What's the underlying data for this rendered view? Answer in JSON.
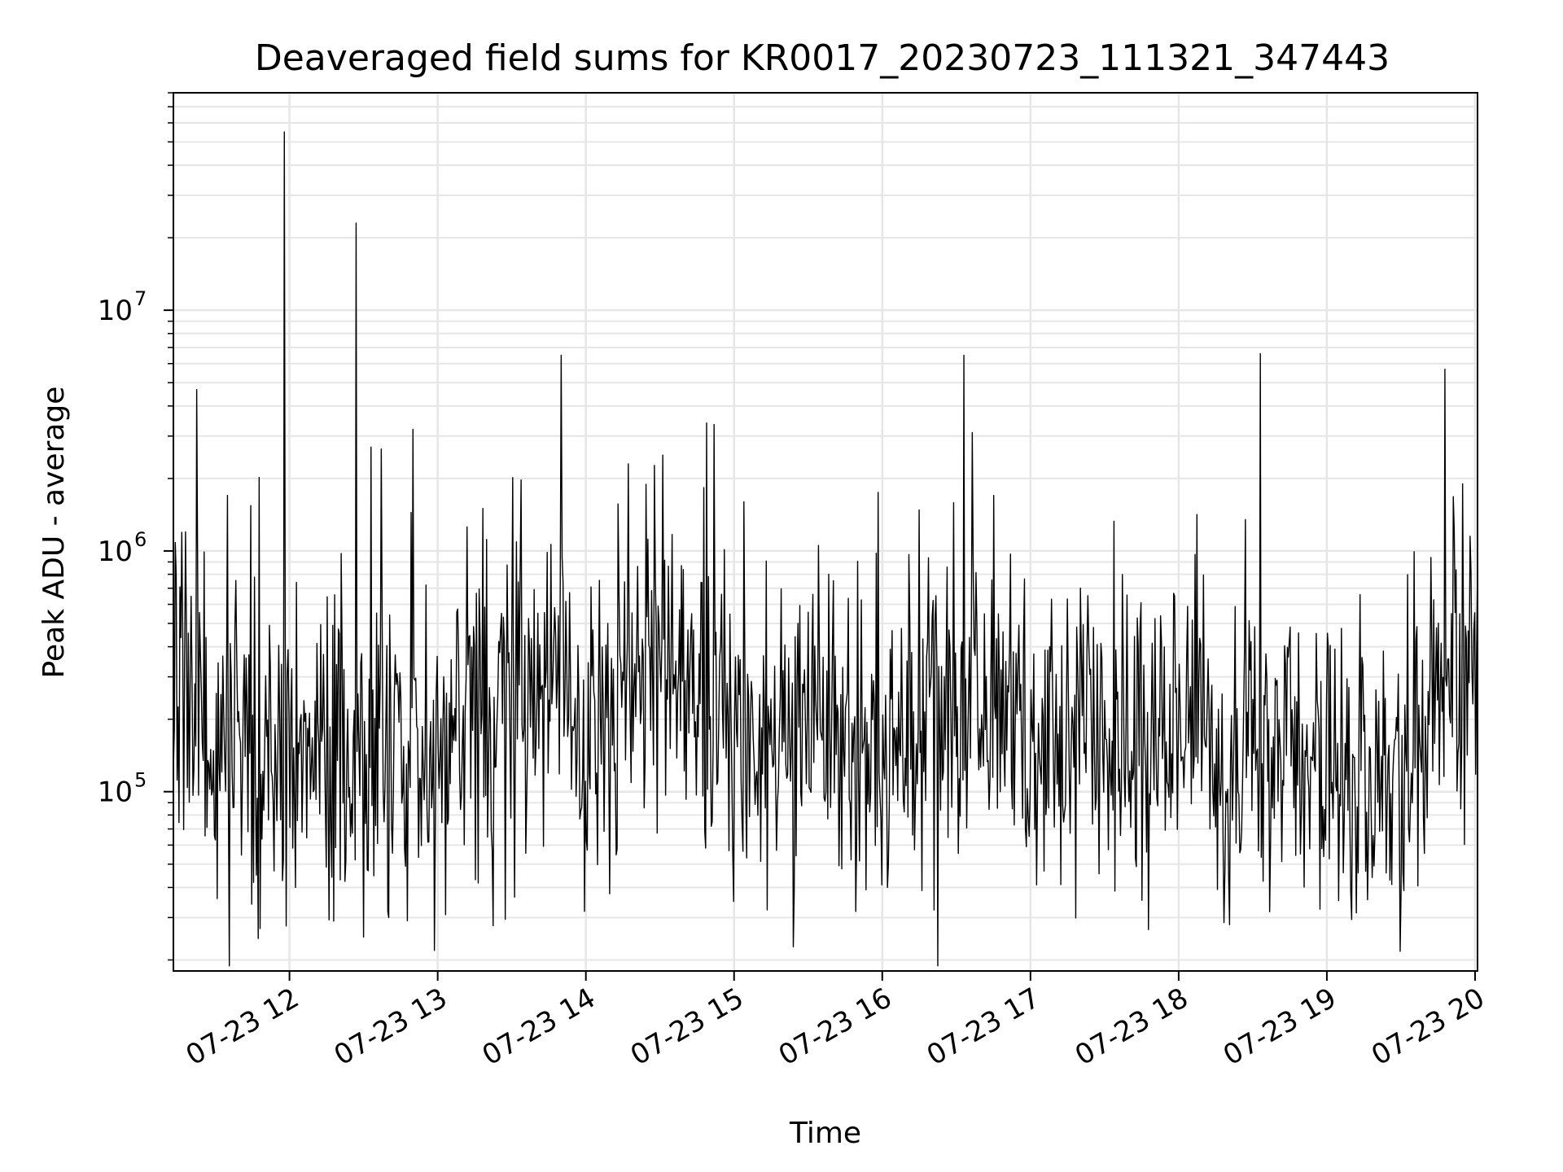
{
  "chart_data": {
    "type": "line",
    "title": "Deaveraged field sums for KR0017_20230723_111321_347443",
    "xlabel": "Time",
    "ylabel": "Peak ADU - average",
    "y_scale": "log",
    "xlim": [
      "2023-07-23 11:13",
      "2023-07-23 20:01"
    ],
    "ylim": [
      18000,
      80000000
    ],
    "x_ticks": [
      {
        "value": "2023-07-23 12:00",
        "label": "07-23 12"
      },
      {
        "value": "2023-07-23 13:00",
        "label": "07-23 13"
      },
      {
        "value": "2023-07-23 14:00",
        "label": "07-23 14"
      },
      {
        "value": "2023-07-23 15:00",
        "label": "07-23 15"
      },
      {
        "value": "2023-07-23 16:00",
        "label": "07-23 16"
      },
      {
        "value": "2023-07-23 17:00",
        "label": "07-23 17"
      },
      {
        "value": "2023-07-23 18:00",
        "label": "07-23 18"
      },
      {
        "value": "2023-07-23 19:00",
        "label": "07-23 19"
      },
      {
        "value": "2023-07-23 20:00",
        "label": "07-23 20"
      }
    ],
    "y_ticks": [
      {
        "value": 100000,
        "base": "10",
        "exp": "5"
      },
      {
        "value": 1000000,
        "base": "10",
        "exp": "6"
      },
      {
        "value": 10000000,
        "base": "10",
        "exp": "7"
      }
    ],
    "grid": "major and minor",
    "line_color": "#000000",
    "grid_color": "#e6e6e6",
    "baseline_profile": [
      {
        "x": "2023-07-23 11:13",
        "y": 300000
      },
      {
        "x": "2023-07-23 11:30",
        "y": 180000
      },
      {
        "x": "2023-07-23 12:00",
        "y": 120000
      },
      {
        "x": "2023-07-23 12:30",
        "y": 140000
      },
      {
        "x": "2023-07-23 13:00",
        "y": 160000
      },
      {
        "x": "2023-07-23 13:30",
        "y": 200000
      },
      {
        "x": "2023-07-23 13:50",
        "y": 350000
      },
      {
        "x": "2023-07-23 14:00",
        "y": 150000
      },
      {
        "x": "2023-07-23 14:30",
        "y": 400000
      },
      {
        "x": "2023-07-23 14:45",
        "y": 300000
      },
      {
        "x": "2023-07-23 15:00",
        "y": 150000
      },
      {
        "x": "2023-07-23 15:30",
        "y": 160000
      },
      {
        "x": "2023-07-23 16:00",
        "y": 140000
      },
      {
        "x": "2023-07-23 16:30",
        "y": 230000
      },
      {
        "x": "2023-07-23 17:00",
        "y": 200000
      },
      {
        "x": "2023-07-23 17:30",
        "y": 170000
      },
      {
        "x": "2023-07-23 18:00",
        "y": 150000
      },
      {
        "x": "2023-07-23 18:30",
        "y": 140000
      },
      {
        "x": "2023-07-23 19:00",
        "y": 120000
      },
      {
        "x": "2023-07-23 19:30",
        "y": 100000
      },
      {
        "x": "2023-07-23 19:50",
        "y": 350000
      },
      {
        "x": "2023-07-23 20:01",
        "y": 300000
      }
    ],
    "peaks": [
      {
        "x": "2023-07-23 11:58",
        "y": 55000000
      },
      {
        "x": "2023-07-23 12:27",
        "y": 23000000
      },
      {
        "x": "2023-07-23 12:33",
        "y": 2700000
      },
      {
        "x": "2023-07-23 12:37",
        "y": 2650000
      },
      {
        "x": "2023-07-23 12:50",
        "y": 3200000
      },
      {
        "x": "2023-07-23 11:35",
        "y": 1700000
      },
      {
        "x": "2023-07-23 13:50",
        "y": 6500000
      },
      {
        "x": "2023-07-23 14:17",
        "y": 2300000
      },
      {
        "x": "2023-07-23 14:31",
        "y": 2500000
      },
      {
        "x": "2023-07-23 14:49",
        "y": 3400000
      },
      {
        "x": "2023-07-23 14:52",
        "y": 3350000
      },
      {
        "x": "2023-07-23 15:04",
        "y": 1600000
      },
      {
        "x": "2023-07-23 16:33",
        "y": 6500000
      },
      {
        "x": "2023-07-23 16:45",
        "y": 1700000
      },
      {
        "x": "2023-07-23 18:33",
        "y": 6600000
      },
      {
        "x": "2023-07-23 18:27",
        "y": 1350000
      },
      {
        "x": "2023-07-23 19:55",
        "y": 1900000
      },
      {
        "x": "2023-07-23 11:18",
        "y": 1200000
      }
    ],
    "dips": [
      {
        "x": "2023-07-23 11:48",
        "y": 27000
      },
      {
        "x": "2023-07-23 12:18",
        "y": 29000
      },
      {
        "x": "2023-07-23 12:40",
        "y": 30000
      },
      {
        "x": "2023-07-23 15:00",
        "y": 35000
      },
      {
        "x": "2023-07-23 16:02",
        "y": 40000
      }
    ],
    "noise_band_decades": 0.32,
    "n_points": 1400
  }
}
